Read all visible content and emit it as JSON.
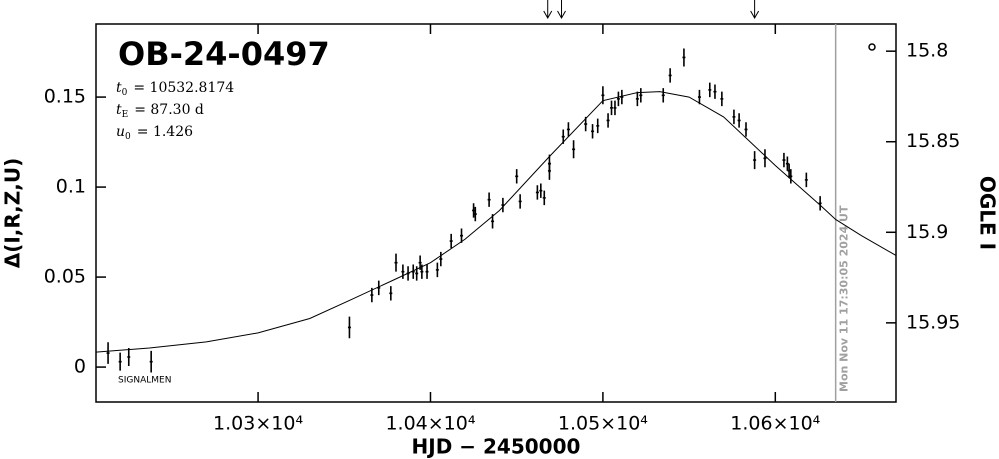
{
  "chart_data": {
    "type": "scatter",
    "title": "OB-24-0497",
    "parameters": [
      {
        "symbol": "t",
        "sub": "0",
        "text": "= 10532.8174"
      },
      {
        "symbol": "t",
        "sub": "E",
        "text": "= 87.30 d"
      },
      {
        "symbol": "u",
        "sub": "0",
        "text": "= 1.426"
      }
    ],
    "xlabel": "HJD − 2450000",
    "ylabel": "Δ(I,R,Z,U)",
    "y2label": "OGLE I",
    "credit": "SIGNALMEN",
    "color": "#000000",
    "x": [
      10213,
      10220,
      10225,
      10238,
      10353,
      10366,
      10370,
      10377,
      10380,
      10384,
      10387,
      10390,
      10392,
      10394,
      10395,
      10398,
      10404,
      10406,
      10412,
      10418,
      10425,
      10426,
      10434,
      10436,
      10442,
      10450,
      10452,
      10462,
      10464,
      10466,
      10469,
      10469,
      10477,
      10480,
      10483,
      10490,
      10494,
      10497,
      10500,
      10503,
      10505,
      10507,
      10509,
      10511,
      10520,
      10522,
      10535,
      10539,
      10547,
      10556,
      10562,
      10565,
      10569,
      10576,
      10579,
      10583,
      10588,
      10594,
      10605,
      10607,
      10608,
      10609,
      10618,
      10626
    ],
    "values": [
      0.0078,
      0.003,
      0.0056,
      0.003,
      0.022,
      0.04,
      0.044,
      0.041,
      0.058,
      0.053,
      0.052,
      0.053,
      0.052,
      0.058,
      0.053,
      0.053,
      0.054,
      0.06,
      0.07,
      0.073,
      0.087,
      0.085,
      0.093,
      0.081,
      0.09,
      0.106,
      0.092,
      0.097,
      0.098,
      0.094,
      0.113,
      0.109,
      0.128,
      0.132,
      0.121,
      0.135,
      0.131,
      0.134,
      0.151,
      0.137,
      0.144,
      0.144,
      0.149,
      0.15,
      0.149,
      0.151,
      0.151,
      0.162,
      0.172,
      0.15,
      0.154,
      0.153,
      0.149,
      0.139,
      0.137,
      0.132,
      0.115,
      0.116,
      0.115,
      0.113,
      0.109,
      0.106,
      0.104,
      0.091
    ],
    "errors": [
      0.006,
      0.005,
      0.005,
      0.006,
      0.006,
      0.004,
      0.004,
      0.004,
      0.005,
      0.004,
      0.004,
      0.004,
      0.004,
      0.004,
      0.004,
      0.004,
      0.004,
      0.004,
      0.004,
      0.004,
      0.004,
      0.004,
      0.004,
      0.004,
      0.004,
      0.004,
      0.004,
      0.004,
      0.004,
      0.004,
      0.005,
      0.005,
      0.004,
      0.004,
      0.005,
      0.004,
      0.004,
      0.004,
      0.005,
      0.004,
      0.004,
      0.004,
      0.004,
      0.004,
      0.004,
      0.004,
      0.004,
      0.004,
      0.005,
      0.004,
      0.004,
      0.004,
      0.004,
      0.004,
      0.004,
      0.004,
      0.005,
      0.005,
      0.004,
      0.004,
      0.004,
      0.004,
      0.004,
      0.004
    ],
    "model": {
      "color": "#000000",
      "x": [
        10206,
        10237,
        10270,
        10300,
        10330,
        10353,
        10380,
        10400,
        10420,
        10440,
        10469,
        10500,
        10520,
        10533,
        10550,
        10570,
        10600,
        10626,
        10635,
        10650,
        10670
      ],
      "values": [
        0.0083,
        0.0106,
        0.014,
        0.019,
        0.027,
        0.037,
        0.049,
        0.058,
        0.071,
        0.087,
        0.117,
        0.148,
        0.1525,
        0.153,
        0.15,
        0.139,
        0.112,
        0.09,
        0.082,
        0.073,
        0.062
      ]
    },
    "arrows_x": [
      10468,
      10476,
      10588
    ],
    "time_line": {
      "x": 10635,
      "label": "Mon Nov 11 17:30:05 2024 UT",
      "color": "#a0a0a0"
    },
    "xlim": [
      10206,
      10670
    ],
    "ylim": [
      -0.0194,
      0.1906
    ],
    "y2lim": [
      15.9937,
      15.785
    ],
    "xticks": [
      {
        "value": 10300,
        "label": "1.03×10⁴"
      },
      {
        "value": 10400,
        "label": "1.04×10⁴"
      },
      {
        "value": 10500,
        "label": "1.05×10⁴"
      },
      {
        "value": 10600,
        "label": "1.06×10⁴"
      }
    ],
    "yticks": [
      0,
      0.05,
      0.1,
      0.15
    ],
    "y2ticks": [
      15.8,
      15.85,
      15.9,
      15.95
    ],
    "grid": false
  }
}
